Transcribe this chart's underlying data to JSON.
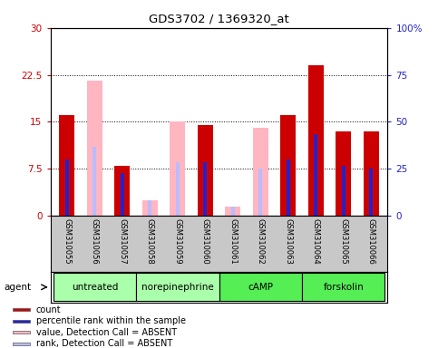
{
  "title": "GDS3702 / 1369320_at",
  "samples": [
    "GSM310055",
    "GSM310056",
    "GSM310057",
    "GSM310058",
    "GSM310059",
    "GSM310060",
    "GSM310061",
    "GSM310062",
    "GSM310063",
    "GSM310064",
    "GSM310065",
    "GSM310066"
  ],
  "count_values": [
    16.0,
    0,
    8.0,
    0,
    0,
    14.5,
    0,
    0,
    16.0,
    24.0,
    13.5,
    13.5
  ],
  "rank_values": [
    9.0,
    0,
    6.8,
    0,
    0,
    8.5,
    0,
    0,
    9.0,
    13.0,
    8.0,
    7.5
  ],
  "absent_value": [
    0,
    21.5,
    0,
    2.5,
    15.0,
    0,
    1.5,
    14.0,
    0,
    0,
    0,
    0
  ],
  "absent_rank": [
    0,
    11.0,
    0,
    2.5,
    8.5,
    0,
    1.5,
    7.5,
    0,
    0,
    0,
    0
  ],
  "agents": [
    {
      "label": "untreated",
      "start": 0,
      "end": 3
    },
    {
      "label": "norepinephrine",
      "start": 3,
      "end": 6
    },
    {
      "label": "cAMP",
      "start": 6,
      "end": 9
    },
    {
      "label": "forskolin",
      "start": 9,
      "end": 12
    }
  ],
  "agent_colors": {
    "untreated": "#AAFFAA",
    "norepinephrine": "#AAFFAA",
    "cAMP": "#55EE55",
    "forskolin": "#55EE55"
  },
  "ylim_left": [
    0,
    30
  ],
  "ylim_right": [
    0,
    100
  ],
  "yticks_left": [
    0,
    7.5,
    15,
    22.5,
    30
  ],
  "ytick_labels_left": [
    "0",
    "7.5",
    "15",
    "22.5",
    "30"
  ],
  "yticks_right": [
    0,
    25,
    50,
    75,
    100
  ],
  "ytick_labels_right": [
    "0",
    "25",
    "50",
    "75",
    "100%"
  ],
  "bar_width": 0.55,
  "rank_bar_width": 0.12,
  "color_count": "#CC0000",
  "color_rank": "#2222CC",
  "color_absent_value": "#FFB6C1",
  "color_absent_rank": "#BBBBFF",
  "bg_color": "#FFFFFF",
  "plot_bg": "#FFFFFF",
  "xlabel_area_color": "#C8C8C8",
  "legend_items": [
    {
      "color": "#CC0000",
      "label": "count"
    },
    {
      "color": "#2222CC",
      "label": "percentile rank within the sample"
    },
    {
      "color": "#FFB6C1",
      "label": "value, Detection Call = ABSENT"
    },
    {
      "color": "#BBBBFF",
      "label": "rank, Detection Call = ABSENT"
    }
  ]
}
